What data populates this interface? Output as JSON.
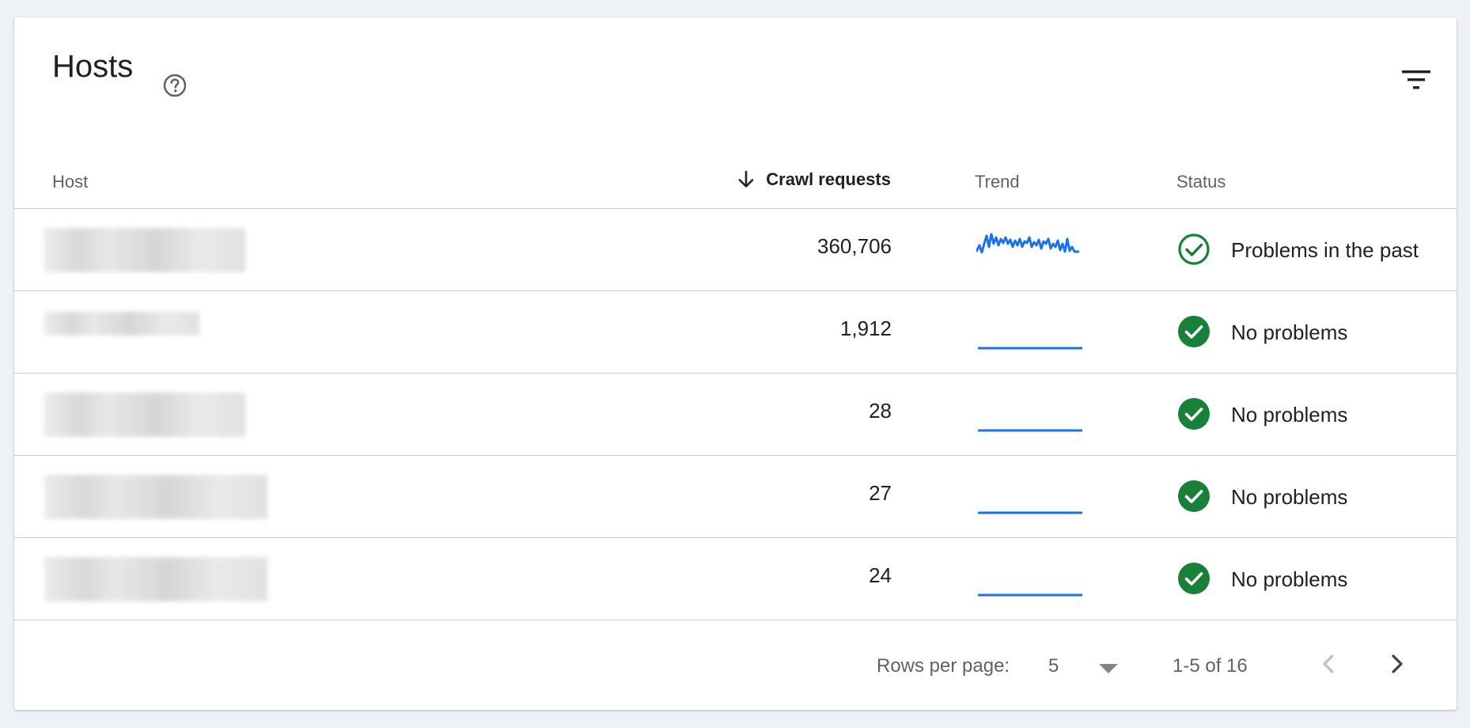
{
  "card": {
    "title": "Hosts",
    "help_icon": "help-circle-icon",
    "filter_icon": "filter-icon"
  },
  "table": {
    "columns": {
      "host": "Host",
      "crawl_requests": "Crawl requests",
      "trend": "Trend",
      "status": "Status"
    },
    "sort": {
      "column": "crawl_requests",
      "direction": "descending"
    },
    "rows": [
      {
        "crawl_requests": "360,706",
        "trend": "volatile",
        "status": "Problems in the past",
        "status_icon": "check-circle-outline-icon"
      },
      {
        "crawl_requests": "1,912",
        "trend": "flat",
        "status": "No problems",
        "status_icon": "check-circle-filled-icon"
      },
      {
        "crawl_requests": "28",
        "trend": "flat",
        "status": "No problems",
        "status_icon": "check-circle-filled-icon"
      },
      {
        "crawl_requests": "27",
        "trend": "flat",
        "status": "No problems",
        "status_icon": "check-circle-filled-icon"
      },
      {
        "crawl_requests": "24",
        "trend": "flat",
        "status": "No problems",
        "status_icon": "check-circle-filled-icon"
      }
    ]
  },
  "footer": {
    "rows_per_page_label": "Rows per page:",
    "rows_per_page_value": "5",
    "range": "1-5 of 16"
  },
  "colors": {
    "accent_blue": "#1a73e8",
    "status_green": "#188038",
    "text": "#202124",
    "muted": "#5f6368"
  }
}
